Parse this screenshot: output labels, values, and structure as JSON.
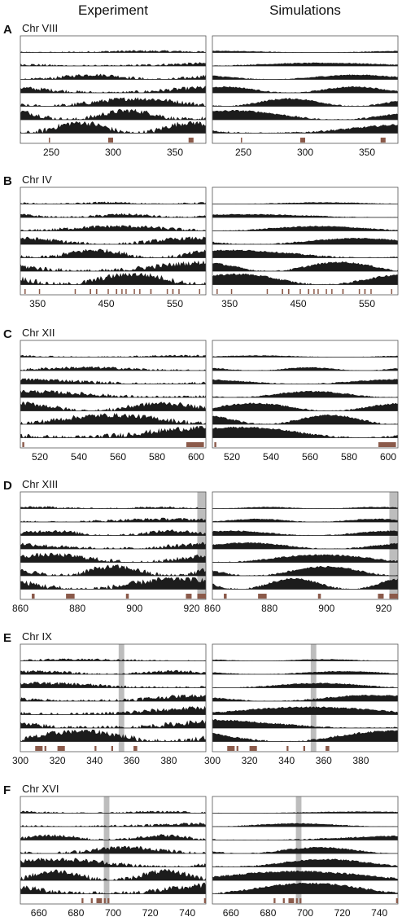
{
  "column_titles": [
    "Experiment",
    "Simulations"
  ],
  "colors": {
    "track": "#1c1c1c",
    "origin": "#8b5a4a",
    "highlight": "#bdbdbd",
    "frame": "#555555"
  },
  "chart_data": [
    {
      "type": "area",
      "panel": "A",
      "chromosome": "Chr VIII",
      "tracks": 7,
      "xlim": [
        225,
        375
      ],
      "xticks": [
        250,
        300,
        350
      ],
      "highlight": null,
      "origins": [
        [
          248,
          249
        ],
        [
          296,
          300
        ],
        [
          361,
          365
        ]
      ]
    },
    {
      "type": "area",
      "panel": "B",
      "chromosome": "Chr IV",
      "tracks": 7,
      "xlim": [
        325,
        595
      ],
      "xticks": [
        350,
        450,
        550
      ],
      "highlight": null,
      "origins": [
        [
          331,
          332
        ],
        [
          352,
          353
        ],
        [
          404,
          405
        ],
        [
          426,
          428
        ],
        [
          435,
          437
        ],
        [
          452,
          453
        ],
        [
          464,
          466
        ],
        [
          472,
          473
        ],
        [
          478,
          479
        ],
        [
          490,
          491
        ],
        [
          498,
          499
        ],
        [
          514,
          516
        ],
        [
          538,
          539
        ],
        [
          546,
          548
        ],
        [
          555,
          556
        ],
        [
          585,
          586
        ]
      ]
    },
    {
      "type": "area",
      "panel": "C",
      "chromosome": "Chr XII",
      "tracks": 7,
      "xlim": [
        510,
        605
      ],
      "xticks": [
        520,
        540,
        560,
        580,
        600
      ],
      "highlight": null,
      "origins": [
        [
          511,
          512
        ],
        [
          595,
          604
        ]
      ]
    },
    {
      "type": "area",
      "panel": "D",
      "chromosome": "Chr XIII",
      "tracks": 7,
      "xlim": [
        860,
        925
      ],
      "xticks": [
        860,
        880,
        900,
        920
      ],
      "highlight": [
        922,
        925
      ],
      "origins": [
        [
          864,
          865
        ],
        [
          876,
          879
        ],
        [
          897,
          898
        ],
        [
          918,
          920
        ],
        [
          922,
          925
        ]
      ]
    },
    {
      "type": "area",
      "panel": "E",
      "chromosome": "Chr IX",
      "tracks": 7,
      "xlim": [
        300,
        400
      ],
      "xticks": [
        300,
        320,
        340,
        360,
        380
      ],
      "highlight": [
        353,
        356
      ],
      "origins": [
        [
          308,
          312
        ],
        [
          313,
          314
        ],
        [
          320,
          324
        ],
        [
          340,
          341
        ],
        [
          349,
          350
        ],
        [
          361,
          363
        ]
      ]
    },
    {
      "type": "area",
      "panel": "F",
      "chromosome": "Chr XVI",
      "tracks": 7,
      "xlim": [
        650,
        750
      ],
      "xticks": [
        660,
        680,
        700,
        720,
        740
      ],
      "highlight": [
        695,
        698
      ],
      "origins": [
        [
          683,
          684
        ],
        [
          688,
          689
        ],
        [
          691,
          694
        ],
        [
          695,
          696
        ],
        [
          697,
          698
        ],
        [
          749,
          750
        ]
      ]
    }
  ]
}
